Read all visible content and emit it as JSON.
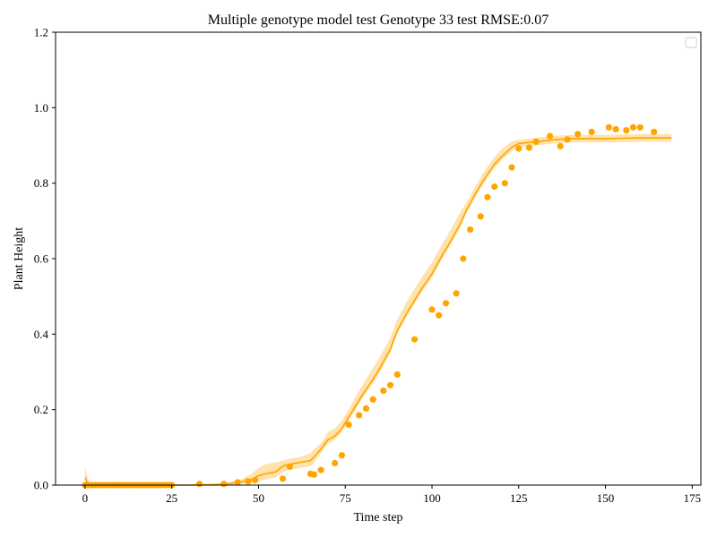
{
  "chart_data": {
    "type": "line",
    "title": "Multiple genotype model test Genotype 33 test RMSE:0.07",
    "xlabel": "Time step",
    "ylabel": "Plant Height",
    "xlim": [
      -8.5,
      177.5
    ],
    "ylim": [
      0.0,
      1.2
    ],
    "xticks": [
      0,
      25,
      50,
      75,
      100,
      125,
      150,
      175
    ],
    "yticks": [
      0.0,
      0.2,
      0.4,
      0.6,
      0.8,
      1.0,
      1.2
    ],
    "legend": "top-right",
    "grid": false,
    "colors": {
      "series": "#FFA500",
      "band": "#FFD27F"
    },
    "series": [
      {
        "kind": "line-with-band",
        "x": [
          0,
          1,
          2,
          5,
          10,
          20,
          30,
          40,
          45,
          48,
          50,
          52,
          55,
          57,
          59,
          62,
          65,
          66,
          68,
          70,
          72,
          74,
          76,
          78,
          80,
          83,
          85,
          88,
          90,
          93,
          95,
          97,
          100,
          103,
          105,
          108,
          110,
          113,
          115,
          118,
          120,
          123,
          125,
          130,
          135,
          140,
          145,
          150,
          155,
          160,
          165,
          169
        ],
        "mean": [
          0.02,
          0.0,
          0.0,
          0.0,
          0.0,
          0.0,
          0.0,
          0.002,
          0.008,
          0.015,
          0.025,
          0.03,
          0.035,
          0.05,
          0.055,
          0.06,
          0.065,
          0.075,
          0.095,
          0.12,
          0.13,
          0.15,
          0.18,
          0.21,
          0.24,
          0.28,
          0.31,
          0.36,
          0.41,
          0.46,
          0.49,
          0.52,
          0.56,
          0.61,
          0.64,
          0.69,
          0.73,
          0.78,
          0.81,
          0.85,
          0.87,
          0.895,
          0.905,
          0.91,
          0.915,
          0.918,
          0.918,
          0.918,
          0.919,
          0.92,
          0.92,
          0.92
        ],
        "lower": [
          0.0,
          0.0,
          0.0,
          0.0,
          0.0,
          0.0,
          0.0,
          0.0,
          0.003,
          0.005,
          0.01,
          0.015,
          0.02,
          0.035,
          0.04,
          0.045,
          0.05,
          0.06,
          0.085,
          0.11,
          0.12,
          0.14,
          0.17,
          0.2,
          0.23,
          0.27,
          0.3,
          0.35,
          0.4,
          0.45,
          0.48,
          0.51,
          0.55,
          0.6,
          0.63,
          0.68,
          0.72,
          0.77,
          0.8,
          0.84,
          0.86,
          0.885,
          0.895,
          0.9,
          0.905,
          0.908,
          0.908,
          0.908,
          0.909,
          0.91,
          0.91,
          0.91
        ],
        "upper": [
          0.05,
          0.01,
          0.0,
          0.0,
          0.0,
          0.0,
          0.001,
          0.005,
          0.015,
          0.03,
          0.045,
          0.055,
          0.06,
          0.065,
          0.07,
          0.075,
          0.085,
          0.095,
          0.11,
          0.14,
          0.15,
          0.17,
          0.2,
          0.235,
          0.265,
          0.31,
          0.34,
          0.39,
          0.44,
          0.49,
          0.52,
          0.55,
          0.59,
          0.64,
          0.67,
          0.72,
          0.75,
          0.8,
          0.83,
          0.87,
          0.89,
          0.91,
          0.915,
          0.92,
          0.925,
          0.928,
          0.928,
          0.928,
          0.929,
          0.93,
          0.93,
          0.93
        ]
      },
      {
        "kind": "scatter",
        "x": [
          0,
          1,
          2,
          3,
          4,
          5,
          6,
          7,
          8,
          9,
          10,
          11,
          12,
          13,
          14,
          15,
          16,
          17,
          18,
          19,
          20,
          21,
          22,
          23,
          24,
          25,
          33,
          40,
          44,
          47,
          49,
          57,
          59,
          65,
          66,
          68,
          72,
          74,
          76,
          79,
          81,
          83,
          86,
          88,
          90,
          95,
          100,
          102,
          104,
          107,
          109,
          111,
          114,
          116,
          118,
          121,
          123,
          125,
          128,
          130,
          134,
          137,
          139,
          142,
          146,
          151,
          153,
          156,
          158,
          160,
          164
        ],
        "y": [
          0.0,
          0.0,
          0.0,
          0.0,
          0.0,
          0.0,
          0.0,
          0.0,
          0.0,
          0.0,
          0.0,
          0.0,
          0.0,
          0.0,
          0.0,
          0.0,
          0.0,
          0.0,
          0.0,
          0.0,
          0.0,
          0.0,
          0.0,
          0.0,
          0.0,
          0.0,
          0.003,
          0.003,
          0.007,
          0.01,
          0.013,
          0.017,
          0.049,
          0.03,
          0.028,
          0.04,
          0.058,
          0.079,
          0.16,
          0.185,
          0.203,
          0.227,
          0.25,
          0.265,
          0.293,
          0.386,
          0.465,
          0.45,
          0.482,
          0.508,
          0.6,
          0.677,
          0.712,
          0.763,
          0.791,
          0.8,
          0.842,
          0.892,
          0.894,
          0.91,
          0.925,
          0.898,
          0.916,
          0.93,
          0.936,
          0.948,
          0.943,
          0.94,
          0.948,
          0.948,
          0.936
        ]
      }
    ]
  }
}
